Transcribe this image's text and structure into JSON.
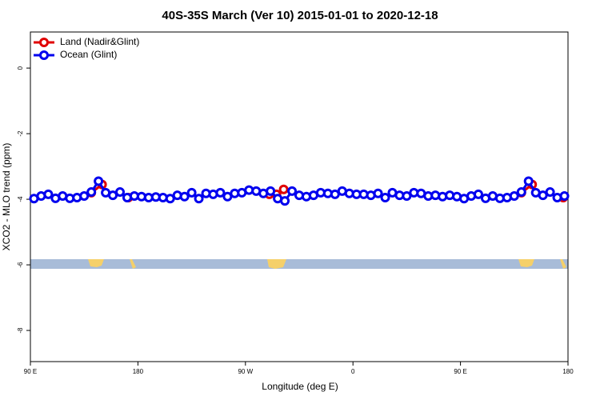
{
  "chart_data": {
    "type": "line",
    "title": "40S-35S March (Ver 10)   2015-01-01 to 2020-12-18",
    "x_label": "Longitude (deg E)",
    "y_label": "XCO2 - MLO trend (ppm)",
    "xlim": [
      90,
      540
    ],
    "xticks": [
      {
        "value": 90,
        "label": "90 E"
      },
      180,
      {
        "value": 270,
        "label": "90 W"
      },
      {
        "value": 360,
        "label": "0"
      },
      {
        "value": 450,
        "label": "90 E"
      },
      {
        "value": 540,
        "label": "180"
      }
    ],
    "ylim": [
      -8.95,
      1.1
    ],
    "yticks": [
      0,
      -2,
      -4,
      -6,
      -8
    ],
    "legend": "upper left",
    "series": [
      {
        "name": "Land (Nadir&Glint)",
        "color": "#e00000",
        "x": [
          141,
          150,
          160,
          172,
          250,
          290,
          296,
          302,
          400,
          501,
          510,
          520,
          536
        ],
        "values": [
          -3.8,
          -3.55,
          null,
          -3.95,
          null,
          -3.85,
          -3.85,
          -3.7,
          null,
          -3.8,
          -3.55,
          null,
          -3.95
        ]
      },
      {
        "name": "Ocean (Glint)",
        "color": "#0000ee",
        "x": [
          93,
          99,
          105,
          111,
          117,
          123,
          129,
          135,
          141,
          147,
          153,
          159,
          165,
          171,
          177,
          183,
          189,
          195,
          201,
          207,
          213,
          219,
          225,
          231,
          237,
          243,
          249,
          255,
          261,
          267,
          273,
          279,
          285,
          291,
          297,
          303,
          309,
          315,
          321,
          327,
          333,
          339,
          345,
          351,
          357,
          363,
          369,
          375,
          381,
          387,
          393,
          399,
          405,
          411,
          417,
          423,
          429,
          435,
          441,
          447,
          453,
          459,
          465,
          471,
          477,
          483,
          489,
          495,
          501,
          507,
          513,
          519,
          525,
          531,
          537
        ],
        "values": [
          -3.98,
          -3.9,
          -3.85,
          -3.97,
          -3.9,
          -3.97,
          -3.95,
          -3.9,
          -3.78,
          -3.45,
          -3.8,
          -3.88,
          -3.78,
          -3.95,
          -3.9,
          -3.92,
          -3.95,
          -3.93,
          -3.95,
          -3.98,
          -3.88,
          -3.92,
          -3.8,
          -3.98,
          -3.82,
          -3.85,
          -3.8,
          -3.92,
          -3.82,
          -3.8,
          -3.72,
          -3.75,
          -3.82,
          -3.75,
          -3.98,
          -4.05,
          -3.75,
          -3.88,
          -3.92,
          -3.88,
          -3.8,
          -3.82,
          -3.85,
          -3.75,
          -3.82,
          -3.85,
          -3.85,
          -3.88,
          -3.82,
          -3.95,
          -3.8,
          -3.88,
          -3.9,
          -3.8,
          -3.82,
          -3.9,
          -3.88,
          -3.92,
          -3.88,
          -3.92,
          -3.98,
          -3.9,
          -3.85,
          -3.97,
          -3.9,
          -3.97,
          -3.95,
          -3.9,
          -3.78,
          -3.45,
          -3.8,
          -3.88,
          -3.78,
          -3.95,
          -3.9
        ]
      }
    ]
  }
}
